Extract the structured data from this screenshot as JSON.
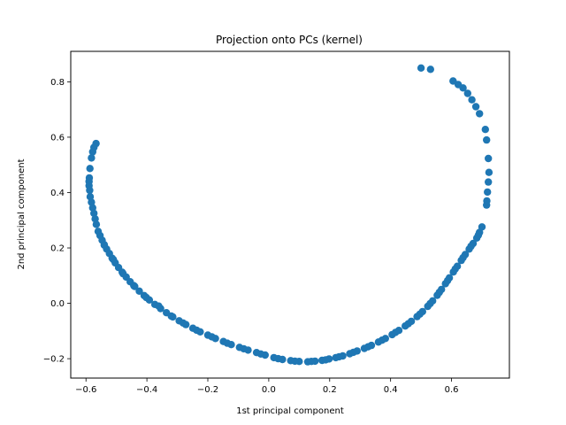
{
  "chart_data": {
    "type": "scatter",
    "title": "Projection onto PCs (kernel)",
    "xlabel": "1st principal component",
    "ylabel": "2nd principal component",
    "xlim": [
      -0.65,
      0.79
    ],
    "ylim": [
      -0.27,
      0.91
    ],
    "xticks": [
      -0.6,
      -0.4,
      -0.2,
      0.0,
      0.2,
      0.4,
      0.6
    ],
    "xtick_labels": [
      "−0.6",
      "−0.4",
      "−0.2",
      "0.0",
      "0.2",
      "0.4",
      "0.6"
    ],
    "yticks": [
      -0.2,
      0.0,
      0.2,
      0.4,
      0.6,
      0.8
    ],
    "ytick_labels": [
      "−0.2",
      "0.0",
      "0.2",
      "0.4",
      "0.6",
      "0.8"
    ],
    "grid": false,
    "legend": "none",
    "marker_color": "#1f77b4",
    "points": [
      [
        -0.567,
        0.577
      ],
      [
        -0.574,
        0.563
      ],
      [
        -0.578,
        0.547
      ],
      [
        -0.582,
        0.525
      ],
      [
        -0.587,
        0.487
      ],
      [
        -0.589,
        0.453
      ],
      [
        -0.59,
        0.44
      ],
      [
        -0.59,
        0.425
      ],
      [
        -0.588,
        0.408
      ],
      [
        -0.586,
        0.385
      ],
      [
        -0.582,
        0.365
      ],
      [
        -0.578,
        0.345
      ],
      [
        -0.574,
        0.325
      ],
      [
        -0.57,
        0.305
      ],
      [
        -0.566,
        0.285
      ],
      [
        -0.56,
        0.26
      ],
      [
        -0.554,
        0.245
      ],
      [
        -0.547,
        0.228
      ],
      [
        -0.54,
        0.212
      ],
      [
        -0.532,
        0.196
      ],
      [
        -0.523,
        0.18
      ],
      [
        -0.514,
        0.163
      ],
      [
        -0.504,
        0.146
      ],
      [
        -0.493,
        0.129
      ],
      [
        -0.481,
        0.112
      ],
      [
        -0.468,
        0.095
      ],
      [
        -0.455,
        0.078
      ],
      [
        -0.44,
        0.061
      ],
      [
        -0.425,
        0.044
      ],
      [
        -0.409,
        0.028
      ],
      [
        -0.392,
        0.012
      ],
      [
        -0.374,
        -0.004
      ],
      [
        -0.355,
        -0.019
      ],
      [
        -0.336,
        -0.034
      ],
      [
        -0.315,
        -0.049
      ],
      [
        -0.294,
        -0.063
      ],
      [
        -0.272,
        -0.077
      ],
      [
        -0.249,
        -0.09
      ],
      [
        -0.225,
        -0.103
      ],
      [
        -0.2,
        -0.115
      ],
      [
        -0.175,
        -0.127
      ],
      [
        -0.149,
        -0.138
      ],
      [
        -0.123,
        -0.149
      ],
      [
        -0.096,
        -0.159
      ],
      [
        -0.068,
        -0.169
      ],
      [
        -0.04,
        -0.178
      ],
      [
        -0.012,
        -0.187
      ],
      [
        0.017,
        -0.196
      ],
      [
        0.045,
        -0.203
      ],
      [
        0.072,
        -0.207
      ],
      [
        0.1,
        -0.21
      ],
      [
        0.128,
        -0.211
      ],
      [
        0.152,
        -0.209
      ],
      [
        0.175,
        -0.206
      ],
      [
        0.198,
        -0.201
      ],
      [
        0.22,
        -0.196
      ],
      [
        0.243,
        -0.19
      ],
      [
        0.266,
        -0.182
      ],
      [
        0.29,
        -0.172
      ],
      [
        0.314,
        -0.163
      ],
      [
        0.337,
        -0.152
      ],
      [
        0.36,
        -0.14
      ],
      [
        0.383,
        -0.127
      ],
      [
        0.405,
        -0.113
      ],
      [
        0.427,
        -0.098
      ],
      [
        0.448,
        -0.082
      ],
      [
        0.468,
        -0.065
      ],
      [
        0.487,
        -0.048
      ],
      [
        0.505,
        -0.03
      ],
      [
        0.522,
        -0.011
      ],
      [
        0.538,
        0.009
      ],
      [
        0.553,
        0.029
      ],
      [
        0.567,
        0.05
      ],
      [
        0.58,
        0.071
      ],
      [
        0.593,
        0.092
      ],
      [
        0.606,
        0.113
      ],
      [
        0.619,
        0.134
      ],
      [
        0.632,
        0.155
      ],
      [
        0.645,
        0.176
      ],
      [
        0.658,
        0.196
      ],
      [
        0.671,
        0.216
      ],
      [
        0.683,
        0.236
      ],
      [
        0.692,
        0.256
      ],
      [
        0.7,
        0.276
      ],
      [
        0.715,
        0.355
      ],
      [
        0.716,
        0.37
      ],
      [
        0.718,
        0.402
      ],
      [
        0.721,
        0.438
      ],
      [
        0.723,
        0.473
      ],
      [
        0.721,
        0.523
      ],
      [
        0.715,
        0.59
      ],
      [
        0.711,
        0.628
      ],
      [
        0.692,
        0.685
      ],
      [
        0.68,
        0.71
      ],
      [
        0.667,
        0.735
      ],
      [
        0.653,
        0.758
      ],
      [
        0.638,
        0.778
      ],
      [
        0.622,
        0.79
      ],
      [
        0.605,
        0.803
      ],
      [
        0.531,
        0.845
      ],
      [
        0.5,
        0.85
      ],
      [
        -0.54,
        0.21
      ],
      [
        -0.51,
        0.158
      ],
      [
        -0.478,
        0.107
      ],
      [
        -0.443,
        0.064
      ],
      [
        -0.402,
        0.021
      ],
      [
        -0.361,
        -0.01
      ],
      [
        -0.32,
        -0.046
      ],
      [
        -0.281,
        -0.071
      ],
      [
        -0.237,
        -0.097
      ],
      [
        -0.187,
        -0.121
      ],
      [
        -0.136,
        -0.144
      ],
      [
        -0.082,
        -0.164
      ],
      [
        -0.026,
        -0.183
      ],
      [
        0.031,
        -0.2
      ],
      [
        0.086,
        -0.209
      ],
      [
        0.14,
        -0.21
      ],
      [
        0.187,
        -0.204
      ],
      [
        0.231,
        -0.193
      ],
      [
        0.278,
        -0.177
      ],
      [
        0.326,
        -0.157
      ],
      [
        0.372,
        -0.133
      ],
      [
        0.416,
        -0.105
      ],
      [
        0.458,
        -0.074
      ],
      [
        0.496,
        -0.039
      ],
      [
        0.53,
        -0.001
      ],
      [
        0.56,
        0.04
      ],
      [
        0.587,
        0.082
      ],
      [
        0.612,
        0.124
      ],
      [
        0.638,
        0.165
      ],
      [
        0.664,
        0.206
      ],
      [
        0.688,
        0.246
      ]
    ]
  }
}
